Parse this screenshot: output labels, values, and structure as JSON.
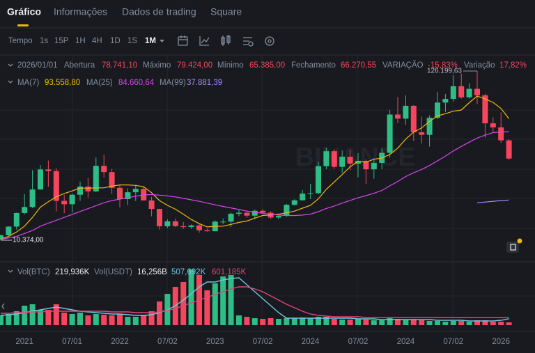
{
  "tabs": [
    "Gráfico",
    "Informações",
    "Dados de trading",
    "Square"
  ],
  "toolbar": {
    "label": "Tempo",
    "intervals": [
      "1s",
      "15P",
      "1H",
      "4H",
      "1D",
      "1S",
      "1M"
    ]
  },
  "info": {
    "date": "2026/01/01",
    "open_label": "Abertura",
    "open": "78.741,10",
    "high_label": "Máximo",
    "high": "79.424,00",
    "low_label": "Mínimo",
    "low": "65.385,00",
    "close_label": "Fechamento",
    "close": "66.270,55",
    "change_label": "VARIAÇÃO",
    "change": "-15,83%",
    "range_label": "Variação",
    "range": "17,82%"
  },
  "ma_legend": {
    "ma7_label": "MA(7)",
    "ma7": "93.558,80",
    "ma25_label": "MA(25)",
    "ma25": "84.660,64",
    "ma99_label": "MA(99)",
    "ma99": "37.881,39"
  },
  "vol_legend": {
    "btc_label": "Vol(BTC)",
    "btc": "219,936K",
    "usdt_label": "Vol(USDT)",
    "usdt": "16,256B",
    "ma_short": "507,692K",
    "ma_long": "601,185K"
  },
  "watermark": "BINANCE",
  "chart_data": {
    "type": "candlestick",
    "categories": [
      null,
      null,
      null,
      "2021",
      null,
      null,
      null,
      null,
      null,
      "07/01",
      null,
      null,
      null,
      null,
      null,
      "2022",
      null,
      null,
      null,
      null,
      null,
      "07/02",
      null,
      null,
      null,
      null,
      null,
      "2023",
      null,
      null,
      null,
      null,
      null,
      "07/02",
      null,
      null,
      null,
      null,
      null,
      "2024",
      null,
      null,
      null,
      null,
      null,
      "07/02",
      null,
      null,
      null,
      null,
      null,
      "2024",
      null,
      null,
      null,
      null,
      null,
      "07/02",
      null,
      null,
      null,
      null,
      null,
      "2026",
      null
    ],
    "open": [
      10780,
      13800,
      19700,
      29000,
      33100,
      45100,
      58800,
      57700,
      37300,
      35000,
      41500,
      47100,
      43800,
      61300,
      57000,
      46200,
      38500,
      43200,
      45500,
      37600,
      31800,
      19900,
      23300,
      20000,
      19400,
      20500,
      17200,
      16500,
      23100,
      23100,
      28500,
      29200,
      27200,
      30500,
      29200,
      25900,
      27000,
      34600,
      37700,
      42300,
      42600,
      61100,
      71300,
      60600,
      67500,
      62800,
      64600,
      58900,
      63300,
      70200,
      96400,
      93600,
      102400,
      84300,
      82500,
      94200,
      104600,
      107100,
      115800,
      108200,
      114000,
      109600,
      90400,
      87600,
      78741.1
    ],
    "high": [
      14100,
      19860,
      29300,
      41900,
      58400,
      61800,
      64900,
      59600,
      41300,
      42400,
      50500,
      52900,
      67000,
      69000,
      59100,
      47990,
      45800,
      48200,
      47400,
      40000,
      31960,
      24700,
      25200,
      22800,
      21100,
      21500,
      18400,
      23900,
      25300,
      29200,
      31000,
      29800,
      31400,
      31800,
      30200,
      27500,
      35200,
      38400,
      44700,
      48970,
      64000,
      73800,
      72800,
      71900,
      72000,
      70000,
      65600,
      66500,
      73600,
      99600,
      108400,
      109600,
      102800,
      95000,
      95800,
      112000,
      110500,
      123200,
      124500,
      117900,
      126199.63,
      110600,
      94600,
      97900,
      79424
    ],
    "low": [
      10374,
      13200,
      17600,
      28100,
      32300,
      45000,
      47000,
      30000,
      28800,
      29300,
      37300,
      39600,
      43300,
      53300,
      42000,
      32900,
      34300,
      37200,
      37600,
      26700,
      17600,
      18800,
      19500,
      18100,
      18200,
      15500,
      16300,
      16500,
      21350,
      19500,
      26900,
      25800,
      24800,
      28900,
      25200,
      24900,
      26500,
      34100,
      37600,
      38500,
      41900,
      59000,
      59200,
      56600,
      58400,
      53500,
      49000,
      52500,
      58900,
      66800,
      90500,
      89300,
      78300,
      76600,
      74500,
      93400,
      98200,
      105300,
      107300,
      107300,
      103500,
      80600,
      84400,
      77000,
      65385
    ],
    "close": [
      13800,
      19700,
      29000,
      33100,
      45100,
      58800,
      57700,
      37300,
      35000,
      41500,
      47100,
      43800,
      61300,
      57000,
      46200,
      38500,
      43200,
      45500,
      37600,
      31800,
      19900,
      23300,
      20000,
      19400,
      20500,
      17200,
      16500,
      23100,
      23100,
      28500,
      29200,
      27200,
      30500,
      29200,
      25900,
      27000,
      34600,
      37700,
      42300,
      42600,
      61100,
      71300,
      60600,
      67500,
      62800,
      64600,
      58900,
      63300,
      70200,
      96400,
      93600,
      102400,
      84300,
      82500,
      94200,
      104600,
      107100,
      115800,
      108200,
      114000,
      109600,
      90400,
      87600,
      78741.1,
      66270.55
    ],
    "up_color": "#2ebd85",
    "down_color": "#f6465d",
    "price_lines": [
      {
        "name": "MA(7)",
        "color": "#f0b90b",
        "values": [
          11000,
          13000,
          16000,
          20000,
          26000,
          33000,
          36700,
          40100,
          42300,
          44100,
          46100,
          46000,
          46200,
          46200,
          47400,
          48200,
          48200,
          47900,
          47000,
          42900,
          37500,
          34200,
          31600,
          28200,
          24600,
          21700,
          19500,
          19900,
          20000,
          21200,
          22600,
          23500,
          25500,
          27300,
          27700,
          28200,
          29100,
          30300,
          32300,
          34200,
          38700,
          45200,
          50200,
          55300,
          60600,
          64400,
          63800,
          65800,
          66600,
          69100,
          73400,
          79600,
          84400,
          87200,
          91700,
          95500,
          97000,
          98700,
          99500,
          104500,
          109100,
          107100,
          104700,
          100600,
          93558.8
        ]
      },
      {
        "name": "MA(25)",
        "color": "#d946ef",
        "values": [
          11000,
          12000,
          13000,
          15000,
          17000,
          20000,
          22000,
          24000,
          26000,
          28000,
          30000,
          32000,
          34000,
          36000,
          37500,
          38500,
          39500,
          40500,
          41400,
          41600,
          41200,
          40700,
          40000,
          39000,
          38000,
          37000,
          35800,
          34600,
          33500,
          32500,
          31400,
          30300,
          29500,
          28800,
          28100,
          27600,
          27300,
          27300,
          27600,
          28200,
          29900,
          32100,
          33800,
          35800,
          37600,
          39400,
          40900,
          42500,
          44400,
          47600,
          50600,
          54000,
          56500,
          58800,
          61500,
          64700,
          67900,
          71500,
          74600,
          77500,
          80300,
          82300,
          84000,
          84400,
          84660.64
        ]
      },
      {
        "name": "MA(99)",
        "color": "#a78bfa",
        "values": [
          null,
          null,
          null,
          null,
          null,
          null,
          null,
          null,
          null,
          null,
          null,
          null,
          null,
          null,
          null,
          null,
          null,
          null,
          null,
          null,
          null,
          null,
          null,
          null,
          null,
          null,
          null,
          null,
          null,
          null,
          null,
          null,
          null,
          null,
          null,
          null,
          null,
          null,
          null,
          null,
          null,
          null,
          null,
          null,
          null,
          null,
          null,
          null,
          null,
          null,
          null,
          null,
          null,
          null,
          null,
          null,
          null,
          null,
          null,
          null,
          36000,
          36500,
          37000,
          37500,
          37881.39
        ]
      }
    ],
    "high_marker": {
      "index": 60,
      "label": "126.199,63"
    },
    "low_marker": {
      "index": 0,
      "label": "10.374,00"
    },
    "volume": [
      770000,
      880000,
      1100000,
      1540000,
      1650000,
      1210000,
      1210000,
      1650000,
      990000,
      880000,
      990000,
      770000,
      880000,
      825000,
      770000,
      880000,
      660000,
      660000,
      770000,
      1100000,
      1870000,
      2475000,
      3025000,
      3410000,
      4400000,
      3960000,
      2750000,
      3300000,
      3850000,
      3960000,
      770000,
      660000,
      550000,
      495000,
      550000,
      495000,
      550000,
      550000,
      605000,
      550000,
      660000,
      660000,
      495000,
      440000,
      440000,
      495000,
      440000,
      385000,
      385000,
      550000,
      495000,
      440000,
      440000,
      385000,
      330000,
      330000,
      275000,
      330000,
      330000,
      275000,
      385000,
      385000,
      275000,
      275000,
      219936
    ],
    "volume_lines": [
      {
        "name": "MA short",
        "color": "#6fc8e0",
        "values": [
          770000,
          825000,
          880000,
          990000,
          1100000,
          1210000,
          1320000,
          1430000,
          1320000,
          1210000,
          1100000,
          1045000,
          990000,
          935000,
          880000,
          880000,
          825000,
          770000,
          770000,
          825000,
          990000,
          1210000,
          1540000,
          1980000,
          2475000,
          3025000,
          3410000,
          3410000,
          3575000,
          3685000,
          3740000,
          3190000,
          2640000,
          2090000,
          1540000,
          990000,
          550000,
          550000,
          550000,
          550000,
          550000,
          550000,
          550000,
          550000,
          550000,
          495000,
          495000,
          495000,
          440000,
          440000,
          440000,
          440000,
          440000,
          440000,
          440000,
          385000,
          385000,
          385000,
          385000,
          330000,
          330000,
          330000,
          330000,
          385000,
          507692
        ]
      },
      {
        "name": "MA long",
        "color": "#e0457b",
        "values": [
          935000,
          935000,
          990000,
          990000,
          1045000,
          1045000,
          1100000,
          1100000,
          1100000,
          1100000,
          1100000,
          1100000,
          1100000,
          1100000,
          1045000,
          1045000,
          1045000,
          990000,
          990000,
          990000,
          1045000,
          1155000,
          1320000,
          1540000,
          1760000,
          1980000,
          2200000,
          2420000,
          2640000,
          2860000,
          3025000,
          3025000,
          2860000,
          2640000,
          2310000,
          1980000,
          1650000,
          1375000,
          1100000,
          880000,
          770000,
          715000,
          660000,
          660000,
          660000,
          660000,
          605000,
          605000,
          605000,
          605000,
          605000,
          605000,
          605000,
          605000,
          605000,
          605000,
          605000,
          605000,
          605000,
          605000,
          605000,
          605000,
          605000,
          605000,
          601185
        ]
      }
    ]
  }
}
